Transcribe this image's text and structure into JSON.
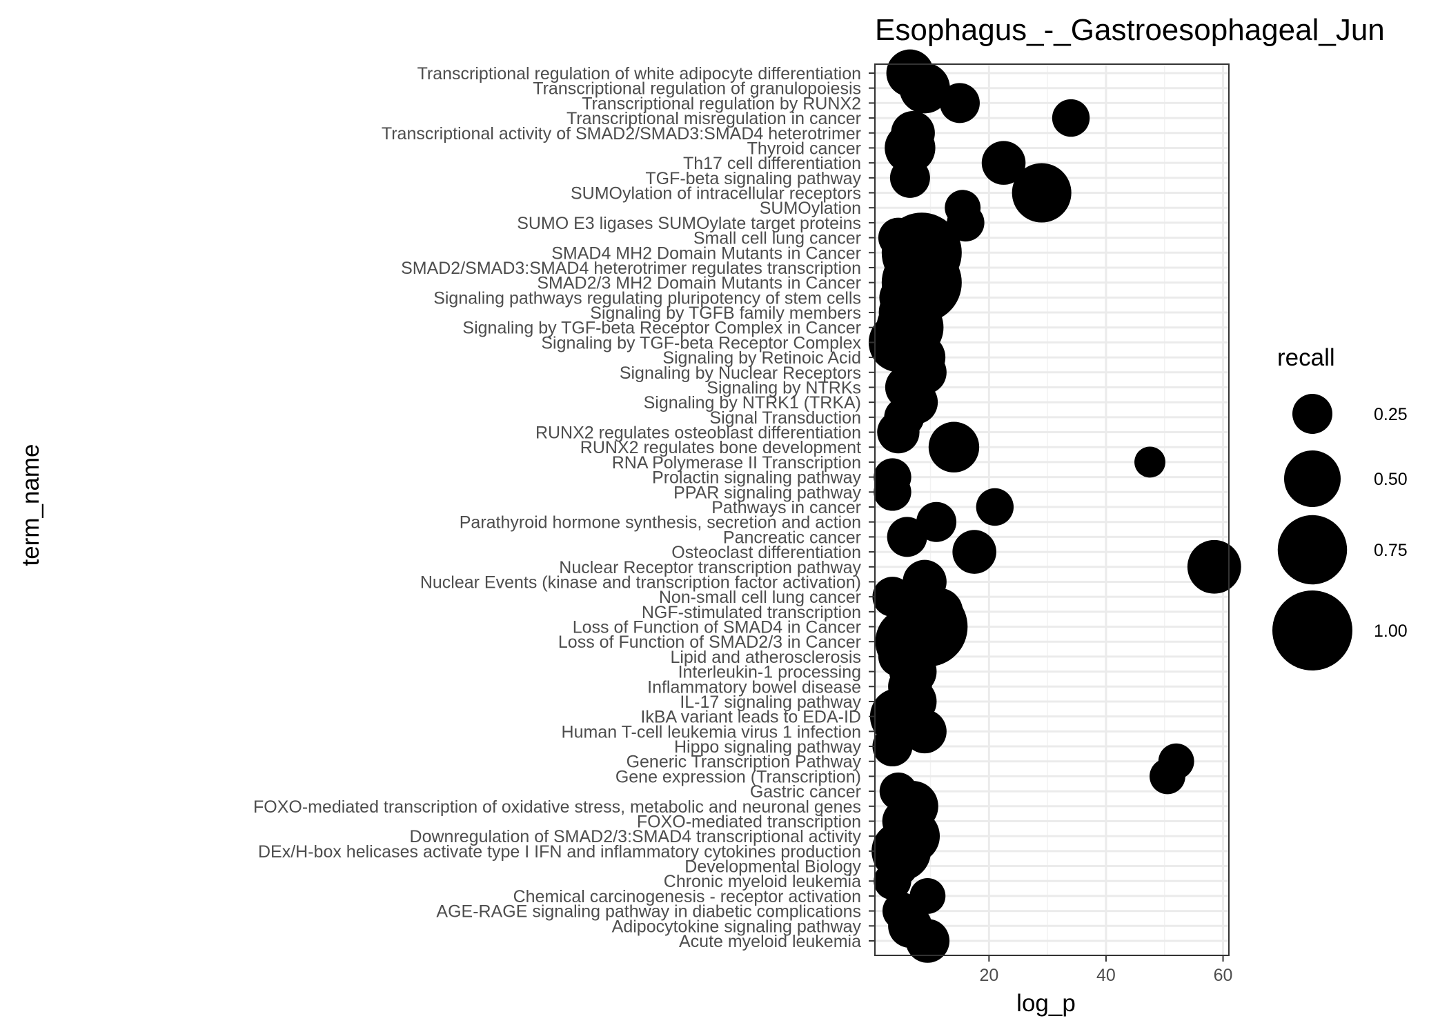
{
  "chart_data": {
    "type": "scatter",
    "title": "Esophagus_-_Gastroesophageal_Jun",
    "xlabel": "log_p",
    "ylabel": "term_name",
    "xlim": [
      0.5,
      61
    ],
    "x_ticks": [
      20,
      40,
      60
    ],
    "grid": true,
    "legend": {
      "title": "recall",
      "position": "right",
      "entries": [
        {
          "label": "0.25",
          "value": 0.25
        },
        {
          "label": "0.50",
          "value": 0.5
        },
        {
          "label": "0.75",
          "value": 0.75
        },
        {
          "label": "1.00",
          "value": 1.0
        }
      ]
    },
    "points": [
      {
        "term": "Transcriptional regulation of white adipocyte differentiation",
        "log_p": 6.5,
        "recall": 0.35
      },
      {
        "term": "Transcriptional regulation of granulopoiesis",
        "log_p": 9.0,
        "recall": 0.4
      },
      {
        "term": "Transcriptional regulation by RUNX2",
        "log_p": 15.0,
        "recall": 0.25
      },
      {
        "term": "Transcriptional misregulation in cancer",
        "log_p": 34.0,
        "recall": 0.22
      },
      {
        "term": "Transcriptional activity of SMAD2/SMAD3:SMAD4 heterotrimer",
        "log_p": 7.0,
        "recall": 0.3
      },
      {
        "term": "Thyroid cancer",
        "log_p": 6.5,
        "recall": 0.4
      },
      {
        "term": "Th17 cell differentiation",
        "log_p": 22.5,
        "recall": 0.3
      },
      {
        "term": "TGF-beta signaling pathway",
        "log_p": 6.5,
        "recall": 0.25
      },
      {
        "term": "SUMOylation of intracellular receptors",
        "log_p": 29.0,
        "recall": 0.55
      },
      {
        "term": "SUMOylation",
        "log_p": 15.5,
        "recall": 0.2
      },
      {
        "term": "SUMO E3 ligases SUMOylate target proteins",
        "log_p": 16.0,
        "recall": 0.22
      },
      {
        "term": "Small cell lung cancer",
        "log_p": 4.5,
        "recall": 0.25
      },
      {
        "term": "SMAD4 MH2 Domain Mutants in Cancer",
        "log_p": 8.5,
        "recall": 1.0
      },
      {
        "term": "SMAD2/SMAD3:SMAD4 heterotrimer regulates transcription",
        "log_p": 8.0,
        "recall": 0.55
      },
      {
        "term": "SMAD2/3 MH2 Domain Mutants in Cancer",
        "log_p": 8.5,
        "recall": 1.0
      },
      {
        "term": "Signaling pathways regulating pluripotency of stem cells",
        "log_p": 5.0,
        "recall": 0.3
      },
      {
        "term": "Signaling by TGFB family members",
        "log_p": 6.0,
        "recall": 0.5
      },
      {
        "term": "Signaling by TGF-beta Receptor Complex in Cancer",
        "log_p": 6.5,
        "recall": 0.7
      },
      {
        "term": "Signaling by TGF-beta Receptor Complex",
        "log_p": 4.5,
        "recall": 0.55
      },
      {
        "term": "Signaling by Retinoic Acid",
        "log_p": 8.5,
        "recall": 0.35
      },
      {
        "term": "Signaling by Nuclear Receptors",
        "log_p": 9.0,
        "recall": 0.3
      },
      {
        "term": "Signaling by NTRKs",
        "log_p": 6.0,
        "recall": 0.3
      },
      {
        "term": "Signaling by NTRK1 (TRKA)",
        "log_p": 7.5,
        "recall": 0.3
      },
      {
        "term": "Signal Transduction",
        "log_p": 5.5,
        "recall": 0.25
      },
      {
        "term": "RUNX2 regulates osteoblast differentiation",
        "log_p": 4.5,
        "recall": 0.28
      },
      {
        "term": "RUNX2 regulates bone development",
        "log_p": 14.0,
        "recall": 0.4
      },
      {
        "term": "RNA Polymerase II Transcription",
        "log_p": 47.5,
        "recall": 0.15
      },
      {
        "term": "Prolactin signaling pathway",
        "log_p": 3.5,
        "recall": 0.22
      },
      {
        "term": "PPAR signaling pathway",
        "log_p": 3.5,
        "recall": 0.22
      },
      {
        "term": "Pathways in cancer",
        "log_p": 21.0,
        "recall": 0.22
      },
      {
        "term": "Parathyroid hormone synthesis, secretion and action",
        "log_p": 11.0,
        "recall": 0.25
      },
      {
        "term": "Pancreatic cancer",
        "log_p": 6.0,
        "recall": 0.25
      },
      {
        "term": "Osteoclast differentiation",
        "log_p": 17.5,
        "recall": 0.3
      },
      {
        "term": "Nuclear Receptor transcription pathway",
        "log_p": 58.5,
        "recall": 0.45
      },
      {
        "term": "Nuclear Events (kinase and transcription factor activation)",
        "log_p": 9.0,
        "recall": 0.3
      },
      {
        "term": "Non-small cell lung cancer",
        "log_p": 3.5,
        "recall": 0.25
      },
      {
        "term": "NGF-stimulated transcription",
        "log_p": 11.5,
        "recall": 0.35
      },
      {
        "term": "Loss of Function of SMAD4 in Cancer",
        "log_p": 9.5,
        "recall": 1.0
      },
      {
        "term": "Loss of Function of SMAD2/3 in Cancer",
        "log_p": 6.5,
        "recall": 0.75
      },
      {
        "term": "Lipid and atherosclerosis",
        "log_p": 4.5,
        "recall": 0.25
      },
      {
        "term": "Interleukin-1 processing",
        "log_p": 7.0,
        "recall": 0.35
      },
      {
        "term": "Inflammatory bowel disease",
        "log_p": 6.5,
        "recall": 0.3
      },
      {
        "term": "IL-17 signaling pathway",
        "log_p": 7.0,
        "recall": 0.35
      },
      {
        "term": "IkBA variant leads to EDA-ID",
        "log_p": 4.5,
        "recall": 0.5
      },
      {
        "term": "Human T-cell leukemia virus 1 infection",
        "log_p": 9.0,
        "recall": 0.3
      },
      {
        "term": "Hippo signaling pathway",
        "log_p": 3.5,
        "recall": 0.25
      },
      {
        "term": "Generic Transcription Pathway",
        "log_p": 52.0,
        "recall": 0.2
      },
      {
        "term": "Gene expression (Transcription)",
        "log_p": 50.5,
        "recall": 0.2
      },
      {
        "term": "Gastric cancer",
        "log_p": 4.5,
        "recall": 0.22
      },
      {
        "term": "FOXO-mediated transcription of oxidative stress, metabolic and neuronal genes",
        "log_p": 7.0,
        "recall": 0.4
      },
      {
        "term": "FOXO-mediated transcription",
        "log_p": 5.5,
        "recall": 0.3
      },
      {
        "term": "Downregulation of SMAD2/3:SMAD4 transcriptional activity",
        "log_p": 7.0,
        "recall": 0.45
      },
      {
        "term": "DEx/H-box helicases activate type I IFN and inflammatory cytokines production",
        "log_p": 5.0,
        "recall": 0.55
      },
      {
        "term": "Developmental Biology",
        "log_p": 4.5,
        "recall": 0.25
      },
      {
        "term": "Chronic myeloid leukemia",
        "log_p": 3.5,
        "recall": 0.22
      },
      {
        "term": "Chemical carcinogenesis - receptor activation",
        "log_p": 9.5,
        "recall": 0.2
      },
      {
        "term": "AGE-RAGE signaling pathway in diabetic complications",
        "log_p": 5.0,
        "recall": 0.22
      },
      {
        "term": "Adipocytokine signaling pathway",
        "log_p": 6.5,
        "recall": 0.3
      },
      {
        "term": "Acute myeloid leukemia",
        "log_p": 9.5,
        "recall": 0.3
      }
    ]
  }
}
